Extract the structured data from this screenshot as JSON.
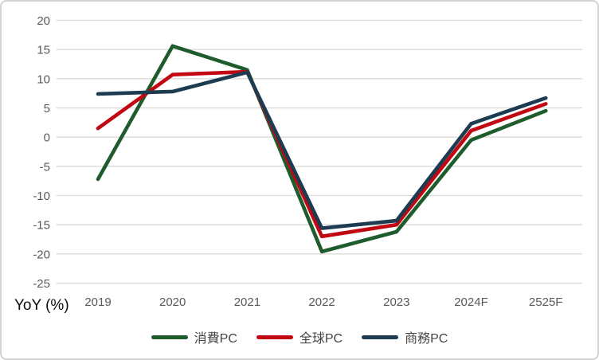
{
  "chart_data": {
    "type": "line",
    "categories": [
      "2019",
      "2020",
      "2021",
      "2022",
      "2023",
      "2024F",
      "2525F"
    ],
    "series": [
      {
        "id": "consumer-pc",
        "name": "消費PC",
        "color": "#1E5C2E",
        "values": [
          -7.2,
          15.6,
          11.5,
          -19.6,
          -16.2,
          -0.5,
          4.5
        ]
      },
      {
        "id": "global-pc",
        "name": "全球PC",
        "color": "#C00712",
        "values": [
          1.5,
          10.7,
          11.2,
          -17.0,
          -15.0,
          1.1,
          5.7
        ]
      },
      {
        "id": "business-pc",
        "name": "商務PC",
        "color": "#1D3C52",
        "values": [
          7.4,
          7.8,
          11.1,
          -15.6,
          -14.3,
          2.3,
          6.7
        ]
      }
    ],
    "title": "",
    "xlabel": "",
    "ylabel": "YoY (%)",
    "ylim": [
      -25,
      20
    ],
    "ytick_step": 5,
    "yticks": [
      20,
      15,
      10,
      5,
      0,
      -5,
      -10,
      -15,
      -20,
      -25
    ],
    "grid": true,
    "legend_position": "bottom",
    "gridline_color": "#D9D9D9",
    "axis_text_color": "#595959"
  }
}
